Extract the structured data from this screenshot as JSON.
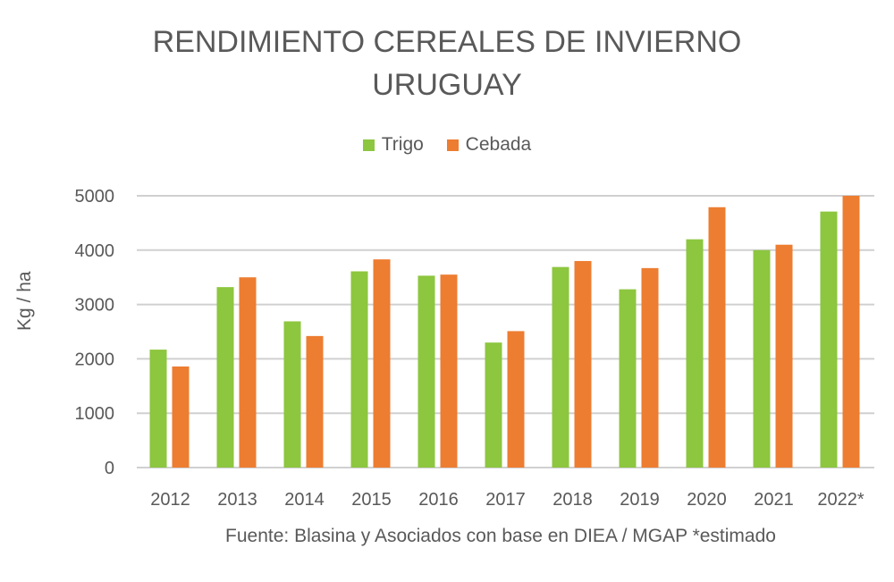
{
  "chart_data": {
    "type": "bar",
    "title": "RENDIMIENTO CEREALES DE INVIERNO",
    "subtitle": "URUGUAY",
    "ylabel": "Kg / ha",
    "xlabel": "",
    "source": "Fuente: Blasina y Asociados con base en DIEA / MGAP *estimado",
    "ylim": [
      0,
      5000
    ],
    "yticks": [
      0,
      1000,
      2000,
      3000,
      4000,
      5000
    ],
    "grid": true,
    "legend_placement": "top",
    "categories": [
      "2012",
      "2013",
      "2014",
      "2015",
      "2016",
      "2017",
      "2018",
      "2019",
      "2020",
      "2021",
      "2022*"
    ],
    "series": [
      {
        "name": "Trigo",
        "color": "#8DC63F",
        "values": [
          2170,
          3320,
          2690,
          3610,
          3530,
          2300,
          3690,
          3280,
          4200,
          4000,
          4710
        ]
      },
      {
        "name": "Cebada",
        "color": "#ED7D31",
        "values": [
          1860,
          3500,
          2420,
          3830,
          3550,
          2510,
          3800,
          3670,
          4790,
          4100,
          5000
        ]
      }
    ]
  }
}
